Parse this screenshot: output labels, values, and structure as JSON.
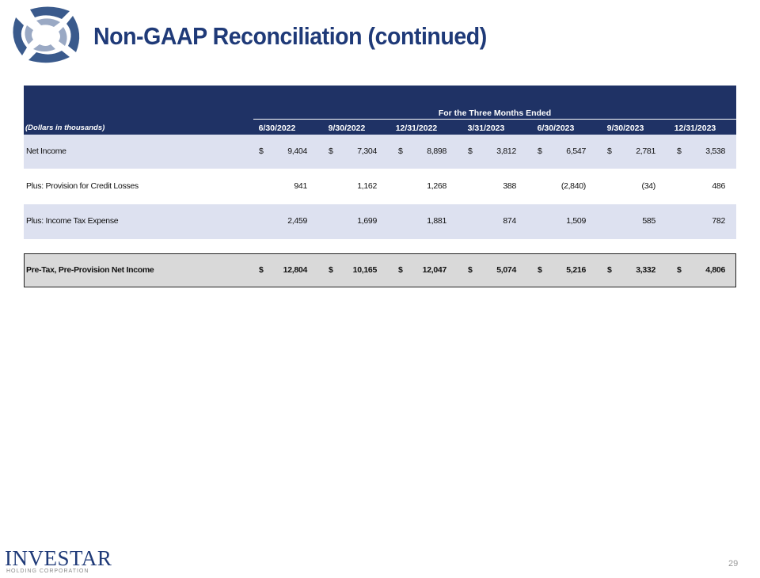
{
  "header": {
    "title": "Non-GAAP Reconciliation (continued)"
  },
  "table": {
    "group_label": "For the Three Months Ended",
    "units_label": "(Dollars in thousands)",
    "columns": [
      "6/30/2022",
      "9/30/2022",
      "12/31/2022",
      "3/31/2023",
      "6/30/2023",
      "9/30/2023",
      "12/31/2023"
    ],
    "rows": [
      {
        "label": "Net Income",
        "currency": "$",
        "values": [
          "9,404",
          "7,304",
          "8,898",
          "3,812",
          "6,547",
          "2,781",
          "3,538"
        ]
      },
      {
        "label": "Plus: Provision for Credit Losses",
        "values": [
          "941",
          "1,162",
          "1,268",
          "388",
          "(2,840)",
          "(34)",
          "486"
        ]
      },
      {
        "label": "Plus: Income Tax Expense",
        "values": [
          "2,459",
          "1,699",
          "1,881",
          "874",
          "1,509",
          "585",
          "782"
        ]
      },
      {
        "label": "Pre-Tax, Pre-Provision Net Income",
        "currency": "$",
        "total": true,
        "values": [
          "12,804",
          "10,165",
          "12,047",
          "5,074",
          "5,216",
          "3,332",
          "4,806"
        ]
      }
    ]
  },
  "footer": {
    "logo_name": "INVESTAR",
    "logo_sub": "HOLDING CORPORATION",
    "page_number": "29"
  }
}
